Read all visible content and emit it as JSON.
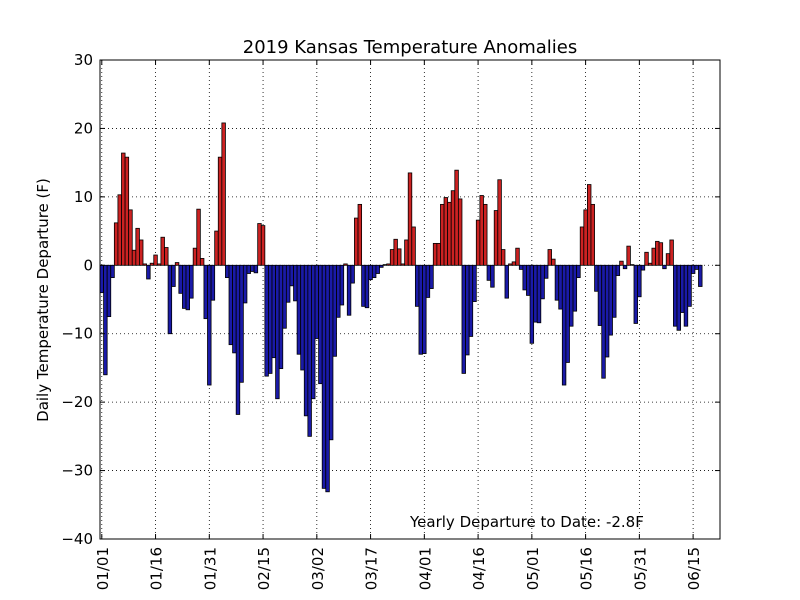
{
  "chart_data": {
    "type": "bar",
    "title": "2019 Kansas Temperature Anomalies",
    "ylabel": "Daily Temperature Departure (F)",
    "xlabel": "",
    "ylim": [
      -40,
      30
    ],
    "yticks": [
      30,
      20,
      10,
      0,
      -10,
      -20,
      -30,
      -40
    ],
    "ytick_labels": [
      "30",
      "20",
      "10",
      "0",
      "−10",
      "−20",
      "−30",
      "−40"
    ],
    "xticks": [
      {
        "day": 1,
        "label": "01/01"
      },
      {
        "day": 16,
        "label": "01/16"
      },
      {
        "day": 31,
        "label": "01/31"
      },
      {
        "day": 46,
        "label": "02/15"
      },
      {
        "day": 61,
        "label": "03/02"
      },
      {
        "day": 76,
        "label": "03/17"
      },
      {
        "day": 91,
        "label": "04/01"
      },
      {
        "day": 106,
        "label": "04/16"
      },
      {
        "day": 121,
        "label": "05/01"
      },
      {
        "day": 136,
        "label": "05/16"
      },
      {
        "day": 151,
        "label": "05/31"
      },
      {
        "day": 166,
        "label": "06/15"
      }
    ],
    "xlim": [
      0.5,
      173.5
    ],
    "grid": true,
    "positive_color": "#cc2222",
    "negative_color": "#1a1aa8",
    "annotation": "Yearly Departure to Date: -2.8F",
    "x_start_day": 1,
    "values": [
      -4,
      -16,
      -7.5,
      -1.8,
      6.2,
      10.3,
      16.4,
      15.8,
      8.1,
      2.2,
      5.4,
      3.7,
      0.2,
      -2,
      0.3,
      1.5,
      0.2,
      4.1,
      2.6,
      -10,
      -3.1,
      0.4,
      -4.1,
      -6.3,
      -6.5,
      -4.8,
      2.5,
      8.2,
      1,
      -7.8,
      -17.5,
      -5.1,
      5,
      15.8,
      20.8,
      -1.8,
      -11.6,
      -12.8,
      -21.8,
      -17.1,
      -5.5,
      -1.2,
      -0.9,
      -1.1,
      6.1,
      5.8,
      -16.2,
      -15.8,
      -13.5,
      -19.5,
      -15.1,
      -9.2,
      -5.4,
      -3,
      -5.2,
      -13,
      -15.3,
      -22,
      -25,
      -19.5,
      -10.7,
      -17.3,
      -32.6,
      -33.1,
      -25.5,
      -13.3,
      -7.6,
      -5.8,
      0.2,
      -7.3,
      -2.6,
      6.9,
      8.9,
      -6,
      -6.2,
      -2.1,
      -1.8,
      -1.2,
      -0.3,
      0.1,
      0.2,
      2.3,
      3.8,
      2.4,
      0.2,
      3.7,
      13.5,
      5.6,
      -6,
      -13,
      -12.9,
      -4.7,
      -3.4,
      3.2,
      3.2,
      8.9,
      9.9,
      9.2,
      10.9,
      13.9,
      9.7,
      -15.8,
      -13.1,
      -10.4,
      -5.3,
      6.6,
      10.2,
      8.9,
      -2.2,
      -3.2,
      8,
      12.5,
      2.3,
      -4.8,
      0.2,
      0.5,
      2.5,
      -0.6,
      -3.6,
      -4.4,
      -11.4,
      -8.3,
      -8.4,
      -4.9,
      -1.9,
      2.3,
      0.9,
      -5.1,
      -6.4,
      -17.5,
      -14.2,
      -8.9,
      -6.7,
      -1.8,
      5.6,
      8.1,
      11.8,
      8.9,
      -3.8,
      -8.8,
      -16.5,
      -13.4,
      -10.2,
      -7.6,
      -1.5,
      0.6,
      -0.5,
      2.8,
      0.1,
      -8.5,
      -4.6,
      -0.7,
      1.9,
      0.3,
      2.5,
      3.5,
      3.3,
      -0.5,
      1.7,
      3.7,
      -8.9,
      -9.5,
      -6.9,
      -8.9,
      -6,
      -1.2,
      -0.6,
      -3.1
    ]
  }
}
